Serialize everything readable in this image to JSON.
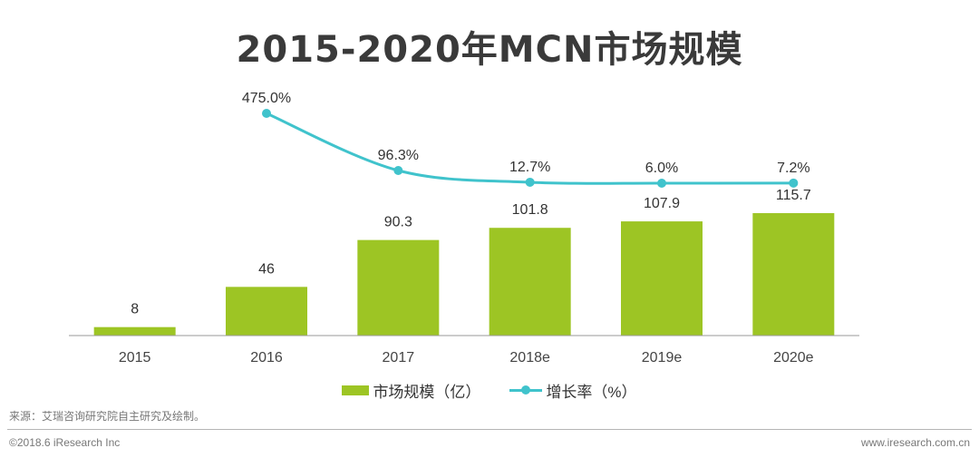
{
  "chart_data": {
    "type": "bar+line",
    "title": "2015-2020年MCN市场规模",
    "categories": [
      "2015",
      "2016",
      "2017",
      "2018e",
      "2019e",
      "2020e"
    ],
    "series": [
      {
        "name": "市场规模（亿）",
        "type": "bar",
        "values": [
          8,
          46,
          90.3,
          101.8,
          107.9,
          115.7
        ],
        "value_labels": [
          "8",
          "46",
          "90.3",
          "101.8",
          "107.9",
          "115.7"
        ],
        "color": "#9dc524"
      },
      {
        "name": "增长率（%）",
        "type": "line",
        "values": [
          null,
          475.0,
          96.3,
          12.7,
          6.0,
          7.2
        ],
        "value_labels": [
          "",
          "475.0%",
          "96.3%",
          "12.7%",
          "6.0%",
          "7.2%"
        ],
        "color": "#40c3cc"
      }
    ],
    "legend_position": "bottom",
    "grid": false
  },
  "legend": {
    "bar_label": "市场规模（亿）",
    "line_label": "增长率（%）"
  },
  "footer": {
    "source": "来源：艾瑞咨询研究院自主研究及绘制。",
    "copyright": "©2018.6 iResearch Inc",
    "website": "www.iresearch.com.cn"
  }
}
